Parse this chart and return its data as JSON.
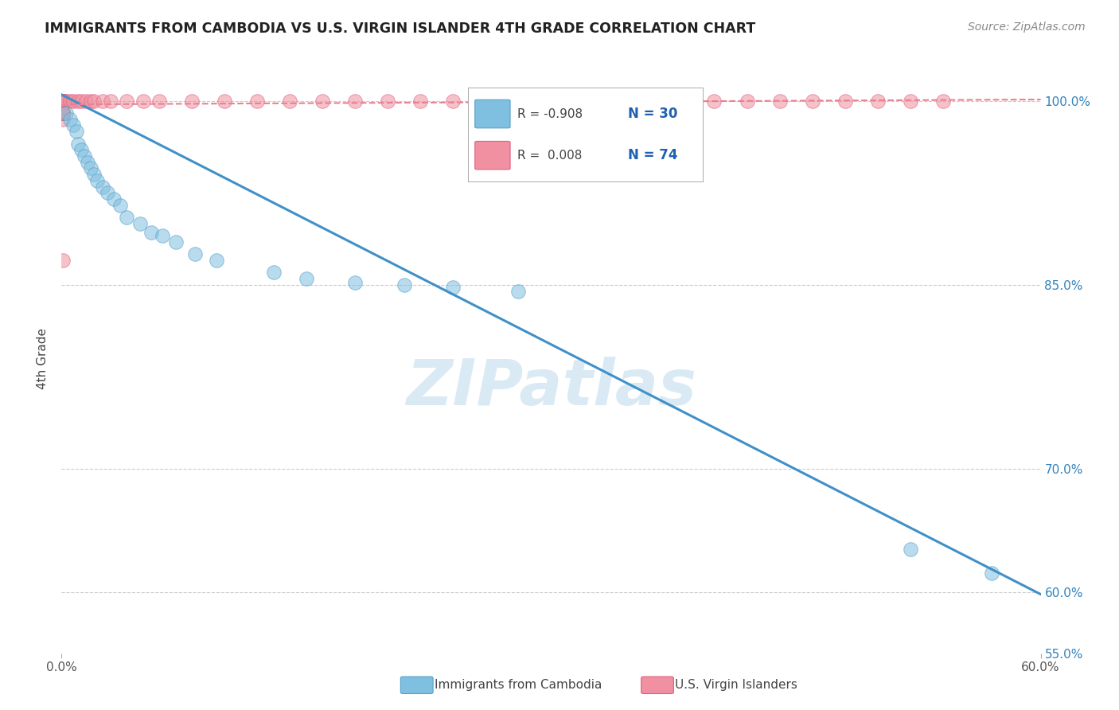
{
  "title": "IMMIGRANTS FROM CAMBODIA VS U.S. VIRGIN ISLANDER 4TH GRADE CORRELATION CHART",
  "source": "Source: ZipAtlas.com",
  "ylabel": "4th Grade",
  "xlim": [
    0.0,
    0.6
  ],
  "ylim": [
    0.585,
    1.03
  ],
  "legend_r1": "R = -0.908",
  "legend_n1": "N = 30",
  "legend_r2": "R =  0.008",
  "legend_n2": "N = 74",
  "blue_color": "#7fbfdf",
  "blue_edge_color": "#5aa0c8",
  "pink_color": "#f090a0",
  "pink_edge_color": "#e06080",
  "blue_line_color": "#4090c8",
  "pink_line_color": "#e88090",
  "watermark_color": "#daeaf5",
  "watermark": "ZIPatlas",
  "blue_scatter_x": [
    0.003,
    0.005,
    0.007,
    0.009,
    0.01,
    0.012,
    0.014,
    0.016,
    0.018,
    0.02,
    0.022,
    0.025,
    0.028,
    0.032,
    0.036,
    0.04,
    0.048,
    0.055,
    0.062,
    0.07,
    0.082,
    0.095,
    0.13,
    0.15,
    0.18,
    0.21,
    0.24,
    0.28,
    0.52,
    0.57
  ],
  "blue_scatter_y": [
    0.99,
    0.985,
    0.98,
    0.975,
    0.965,
    0.96,
    0.955,
    0.95,
    0.945,
    0.94,
    0.935,
    0.93,
    0.925,
    0.92,
    0.915,
    0.905,
    0.9,
    0.893,
    0.89,
    0.885,
    0.875,
    0.87,
    0.86,
    0.855,
    0.852,
    0.85,
    0.848,
    0.845,
    0.635,
    0.615
  ],
  "pink_scatter_x": [
    0.001,
    0.001,
    0.001,
    0.001,
    0.001,
    0.001,
    0.001,
    0.001,
    0.001,
    0.001,
    0.002,
    0.002,
    0.003,
    0.005,
    0.007,
    0.01,
    0.012,
    0.015,
    0.018,
    0.02,
    0.025,
    0.03,
    0.04,
    0.05,
    0.06,
    0.08,
    0.1,
    0.12,
    0.14,
    0.16,
    0.18,
    0.2,
    0.22,
    0.24,
    0.26,
    0.28,
    0.3,
    0.32,
    0.34,
    0.36,
    0.38,
    0.4,
    0.42,
    0.44,
    0.46,
    0.48,
    0.5,
    0.52,
    0.54,
    0.001,
    0.001,
    0.001,
    0.001,
    0.001,
    0.001,
    0.001,
    0.001,
    0.001,
    0.001,
    0.001,
    0.001,
    0.001,
    0.001,
    0.001,
    0.001,
    0.001,
    0.001,
    0.001,
    0.001,
    0.001,
    0.001,
    0.001,
    0.001,
    0.001
  ],
  "pink_scatter_y": [
    1.0,
    1.0,
    1.0,
    1.0,
    1.0,
    1.0,
    1.0,
    1.0,
    1.0,
    1.0,
    1.0,
    1.0,
    1.0,
    1.0,
    1.0,
    1.0,
    1.0,
    1.0,
    1.0,
    1.0,
    1.0,
    1.0,
    1.0,
    1.0,
    1.0,
    1.0,
    1.0,
    1.0,
    1.0,
    1.0,
    1.0,
    1.0,
    1.0,
    1.0,
    1.0,
    1.0,
    1.0,
    1.0,
    1.0,
    1.0,
    1.0,
    1.0,
    1.0,
    1.0,
    1.0,
    1.0,
    1.0,
    1.0,
    1.0,
    0.99,
    0.99,
    0.99,
    0.99,
    0.99,
    0.99,
    0.99,
    0.99,
    0.99,
    0.99,
    0.985,
    0.87,
    0.99,
    0.99,
    0.99,
    0.99,
    0.99,
    0.99,
    0.99,
    0.99,
    0.99,
    0.99,
    0.99,
    0.99,
    0.99
  ],
  "blue_trendline_x": [
    0.0,
    0.6
  ],
  "blue_trendline_y": [
    1.005,
    0.598
  ],
  "pink_trendline_x": [
    0.0,
    0.6
  ],
  "pink_trendline_y": [
    0.997,
    1.001
  ],
  "ytick_positions": [
    0.6,
    0.55,
    0.7,
    0.85,
    1.0
  ],
  "ytick_strings": [
    "60.0%",
    "55.0%",
    "70.0%",
    "85.0%",
    "100.0%"
  ],
  "xtick_positions": [
    0.0,
    0.6
  ],
  "xtick_strings": [
    "0.0%",
    "60.0%"
  ]
}
